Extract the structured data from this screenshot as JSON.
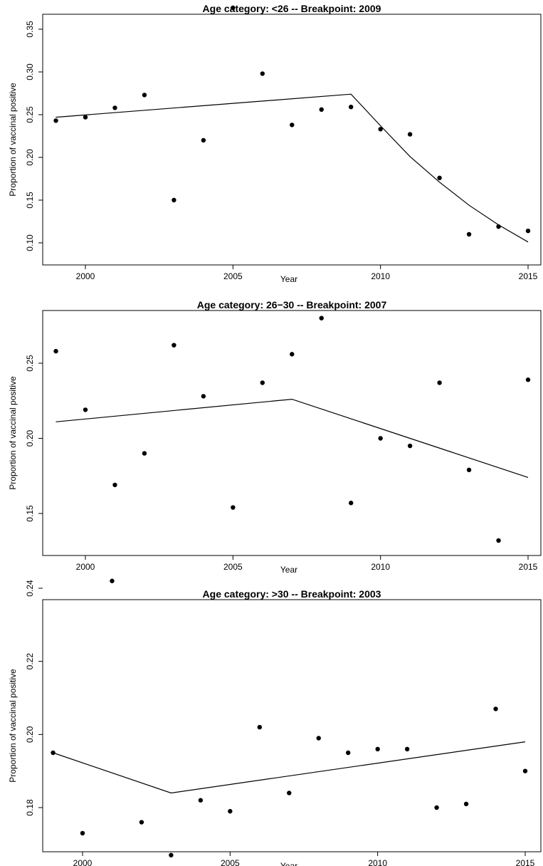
{
  "chart_data": [
    {
      "type": "scatter",
      "title": "Age category: <26 -- Breakpoint: 2009",
      "xlabel": "Year",
      "ylabel": "Proportion of vaccinal positive",
      "xlim": [
        1999,
        2015
      ],
      "ylim": [
        0.1,
        0.35
      ],
      "xticks": [
        2000,
        2005,
        2010,
        2015
      ],
      "yticks": [
        0.1,
        0.15,
        0.2,
        0.25,
        0.3,
        0.35
      ],
      "ytick_labels": [
        "0.10",
        "0.15",
        "0.20",
        "0.25",
        "0.30",
        "0.35"
      ],
      "grid": false,
      "points": {
        "x": [
          1999,
          2000,
          2001,
          2002,
          2003,
          2004,
          2005,
          2006,
          2007,
          2008,
          2009,
          2010,
          2011,
          2012,
          2013,
          2014,
          2015
        ],
        "y": [
          0.243,
          0.247,
          0.258,
          0.273,
          0.15,
          0.22,
          0.375,
          0.298,
          0.238,
          0.256,
          0.259,
          0.233,
          0.227,
          0.176,
          0.11,
          0.119,
          0.114
        ]
      },
      "fit_line": {
        "x": [
          1999,
          2009,
          2010,
          2011,
          2012,
          2013,
          2014,
          2015
        ],
        "y": [
          0.247,
          0.274,
          0.237,
          0.201,
          0.171,
          0.144,
          0.121,
          0.101
        ]
      }
    },
    {
      "type": "scatter",
      "title": "Age category: 26−30 -- Breakpoint: 2007",
      "xlabel": "Year",
      "ylabel": "Proportion of vaccinal positive",
      "xlim": [
        1999,
        2015
      ],
      "ylim": [
        0.135,
        0.28
      ],
      "xticks": [
        2000,
        2005,
        2010,
        2015
      ],
      "yticks": [
        0.15,
        0.2,
        0.25
      ],
      "ytick_labels": [
        "0.15",
        "0.20",
        "0.25"
      ],
      "grid": false,
      "points": {
        "x": [
          1999,
          2000,
          2001,
          2002,
          2003,
          2004,
          2005,
          2006,
          2007,
          2008,
          2009,
          2010,
          2011,
          2012,
          2013,
          2014,
          2015
        ],
        "y": [
          0.258,
          0.219,
          0.169,
          0.19,
          0.262,
          0.228,
          0.154,
          0.237,
          0.256,
          0.28,
          0.157,
          0.2,
          0.195,
          0.237,
          0.179,
          0.132,
          0.239
        ]
      },
      "fit_line": {
        "x": [
          1999,
          2007,
          2015
        ],
        "y": [
          0.211,
          0.226,
          0.174
        ]
      }
    },
    {
      "type": "scatter",
      "title": "Age category: >30 -- Breakpoint: 2003",
      "xlabel": "Year",
      "ylabel": "Proportion of vaccinal positive",
      "xlim": [
        1999,
        2015
      ],
      "ylim": [
        0.167,
        0.242
      ],
      "xticks": [
        2000,
        2005,
        2010,
        2015
      ],
      "yticks": [
        0.18,
        0.2,
        0.22,
        0.24
      ],
      "ytick_labels": [
        "0.18",
        "0.20",
        "0.22",
        "0.24"
      ],
      "grid": false,
      "points": {
        "x": [
          1999,
          2000,
          2001,
          2002,
          2003,
          2004,
          2005,
          2006,
          2007,
          2008,
          2009,
          2010,
          2011,
          2012,
          2013,
          2014,
          2015
        ],
        "y": [
          0.195,
          0.173,
          0.242,
          0.176,
          0.167,
          0.182,
          0.179,
          0.202,
          0.184,
          0.199,
          0.195,
          0.196,
          0.196,
          0.18,
          0.181,
          0.207,
          0.19
        ]
      },
      "fit_line": {
        "x": [
          1999,
          2003,
          2015
        ],
        "y": [
          0.195,
          0.184,
          0.198
        ]
      }
    }
  ]
}
